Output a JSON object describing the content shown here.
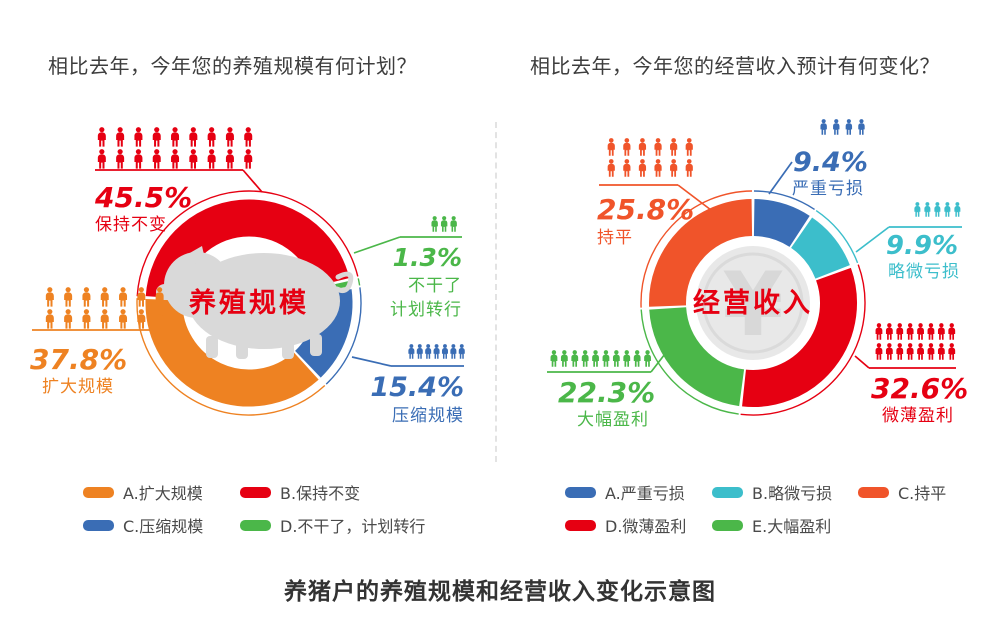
{
  "caption": "养猪户的养殖规模和经营收入变化示意图",
  "chart_data": [
    {
      "id": "scale",
      "type": "donut",
      "question": "相比去年，今年您的养殖规模有何计划？",
      "center_label": "养殖规模",
      "center_icon": "pig-icon",
      "value_unit": "%",
      "legend_position": "bottom",
      "segments": [
        {
          "letter": "A",
          "label": "扩大规模",
          "value": 37.8,
          "color": "#ee8222",
          "icon_rows": [
            7,
            7
          ]
        },
        {
          "letter": "B",
          "label": "保持不变",
          "value": 45.5,
          "color": "#e60012",
          "icon_rows": [
            9,
            9
          ]
        },
        {
          "letter": "C",
          "label": "压缩规模",
          "value": 15.4,
          "color": "#3a6db5",
          "icon_rows": [
            7
          ]
        },
        {
          "letter": "D",
          "label": "不干了，计划转行",
          "value": 1.3,
          "color": "#4bb749",
          "icon_rows": [
            3
          ],
          "callout_lines": [
            "不干了",
            "计划转行"
          ]
        }
      ]
    },
    {
      "id": "income",
      "type": "donut",
      "question": "相比去年，今年您的经营收入预计有何变化？",
      "center_label": "经营收入",
      "center_icon": "yuan-coin-icon",
      "value_unit": "%",
      "legend_position": "bottom",
      "segments": [
        {
          "letter": "A",
          "label": "严重亏损",
          "value": 9.4,
          "color": "#3a6db5",
          "icon_rows": [
            4
          ]
        },
        {
          "letter": "B",
          "label": "略微亏损",
          "value": 9.9,
          "color": "#3cbecb",
          "icon_rows": [
            5
          ]
        },
        {
          "letter": "C",
          "label": "持平",
          "value": 25.8,
          "color": "#f0542a",
          "icon_rows": [
            6,
            6
          ]
        },
        {
          "letter": "D",
          "label": "微薄盈利",
          "value": 32.6,
          "color": "#e60012",
          "icon_rows": [
            8,
            8
          ]
        },
        {
          "letter": "E",
          "label": "大幅盈利",
          "value": 22.3,
          "color": "#4bb749",
          "icon_rows": [
            10
          ]
        }
      ]
    }
  ]
}
